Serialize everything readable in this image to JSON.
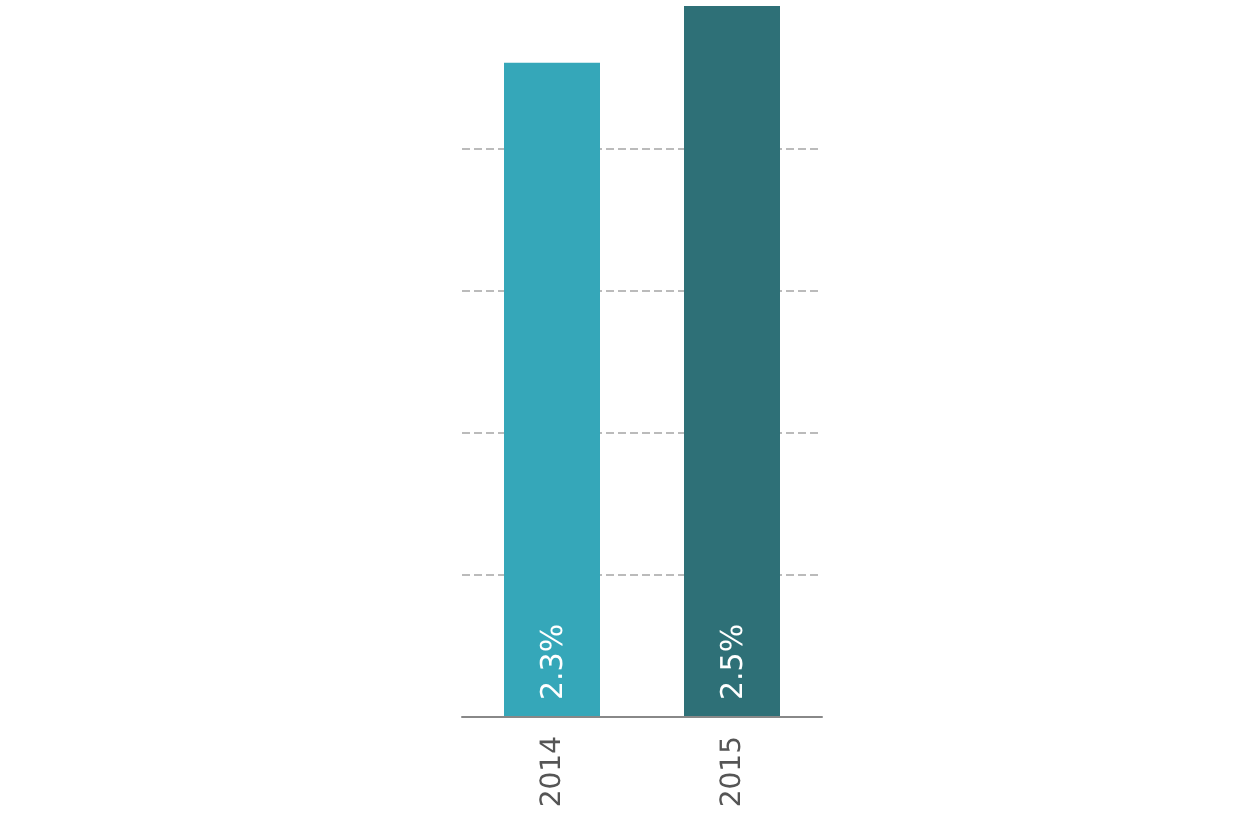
{
  "chart_data": {
    "type": "bar",
    "categories": [
      "2014",
      "2015"
    ],
    "values": [
      2.3,
      2.5
    ],
    "colors": [
      "#35a7b9",
      "#2e7077"
    ],
    "value_labels": [
      "2.3%",
      "2.5%"
    ],
    "ylim": [
      0,
      2.5
    ],
    "yticks": [
      {
        "value": 0.5,
        "label": null
      },
      {
        "value": 1,
        "label": null
      },
      {
        "value": 1.5,
        "label": null
      },
      {
        "value": 2,
        "label": null
      }
    ],
    "tick_labels": "x",
    "grid": "y"
  }
}
